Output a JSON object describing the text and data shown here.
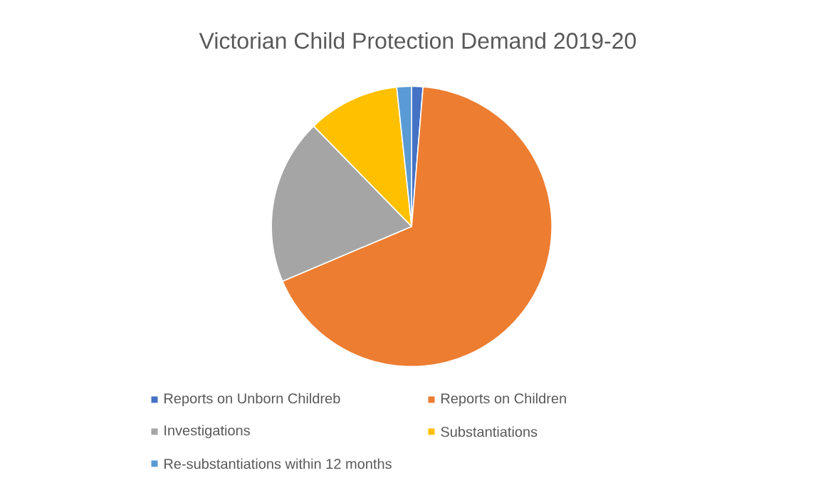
{
  "chart_data": {
    "type": "pie",
    "title": "Victorian Child Protection Demand 2019-20",
    "categories": [
      "Reports on Unborn Childreb",
      "Reports on Children",
      "Investigations",
      "Substantiations",
      "Re-substantiations within 12 months"
    ],
    "values": [
      1.3,
      67.3,
      19.1,
      10.6,
      1.7
    ],
    "colors": [
      "#4472c4",
      "#ed7d31",
      "#a5a5a5",
      "#ffc000",
      "#5b9bd5"
    ],
    "legend": "bottom"
  }
}
